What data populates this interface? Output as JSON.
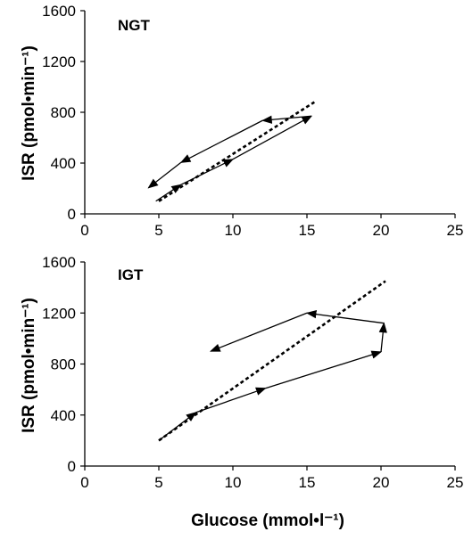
{
  "chart_data": [
    {
      "type": "line",
      "panel_label": "NGT",
      "ylabel": "ISR (pmol•min⁻¹)",
      "xlabel": "",
      "xlim": [
        0,
        25
      ],
      "ylim": [
        0,
        1600
      ],
      "x_ticks": [
        0,
        5,
        10,
        15,
        20,
        25
      ],
      "y_ticks": [
        0,
        400,
        800,
        1200,
        1600
      ],
      "grid": false,
      "series": [
        {
          "style": "solid-arrows",
          "points": [
            [
              4.8,
              100
            ],
            [
              6.5,
              230
            ],
            [
              10.0,
              430
            ],
            [
              15.3,
              770
            ],
            [
              12.0,
              735
            ],
            [
              6.5,
              405
            ],
            [
              4.3,
              205
            ]
          ]
        },
        {
          "style": "dashed",
          "points": [
            [
              5.0,
              100
            ],
            [
              15.5,
              880
            ]
          ]
        }
      ]
    },
    {
      "type": "line",
      "panel_label": "IGT",
      "ylabel": "ISR (pmol•min⁻¹)",
      "xlabel": "Glucose (mmol•l⁻¹)",
      "xlim": [
        0,
        25
      ],
      "ylim": [
        0,
        1600
      ],
      "x_ticks": [
        0,
        5,
        10,
        15,
        20,
        25
      ],
      "y_ticks": [
        0,
        400,
        800,
        1200,
        1600
      ],
      "grid": false,
      "series": [
        {
          "style": "solid-arrows",
          "points": [
            [
              5.0,
              200
            ],
            [
              7.5,
              420
            ],
            [
              12.2,
              610
            ],
            [
              20.0,
              895
            ],
            [
              20.2,
              1120
            ],
            [
              15.0,
              1200
            ],
            [
              8.5,
              900
            ]
          ]
        },
        {
          "style": "dashed",
          "points": [
            [
              5.0,
              200
            ],
            [
              20.3,
              1450
            ]
          ]
        }
      ]
    }
  ]
}
